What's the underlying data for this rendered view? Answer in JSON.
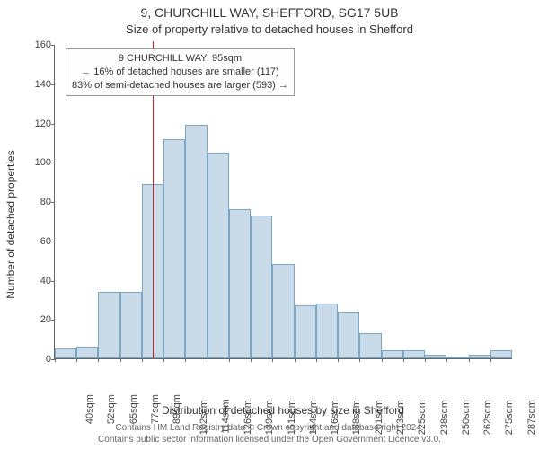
{
  "title_main": "9, CHURCHILL WAY, SHEFFORD, SG17 5UB",
  "title_sub": "Size of property relative to detached houses in Shefford",
  "ylabel": "Number of detached properties",
  "xlabel": "Distribution of detached houses by size in Shefford",
  "caption_line1": "Contains HM Land Registry data © Crown copyright and database right 2024.",
  "caption_line2": "Contains public sector information licensed under the Open Government Licence v3.0.",
  "annotation": {
    "line1": "9 CHURCHILL WAY: 95sqm",
    "line2": "← 16% of detached houses are smaller (117)",
    "line3": "83% of semi-detached houses are larger (593) →"
  },
  "chart": {
    "type": "histogram",
    "bar_color": "#c9dae8",
    "bar_border_color": "#7aa6c2",
    "axis_color": "#666666",
    "background_color": "#ffffff",
    "ref_line_color": "#cc2222",
    "ref_line_at": 4.5,
    "ylim": [
      0,
      160
    ],
    "ytick_step": 20,
    "categories": [
      "40sqm",
      "52sqm",
      "65sqm",
      "77sqm",
      "89sqm",
      "102sqm",
      "114sqm",
      "126sqm",
      "139sqm",
      "151sqm",
      "164sqm",
      "176sqm",
      "188sqm",
      "201sqm",
      "213sqm",
      "225sqm",
      "238sqm",
      "250sqm",
      "262sqm",
      "275sqm",
      "287sqm"
    ],
    "values": [
      5,
      6,
      34,
      34,
      89,
      112,
      119,
      105,
      76,
      73,
      48,
      27,
      28,
      24,
      13,
      4,
      4,
      2,
      0,
      2,
      4
    ],
    "title_fontsize": 14,
    "subtitle_fontsize": 13,
    "label_fontsize": 12,
    "tick_fontsize": 11,
    "annotation_fontsize": 11,
    "caption_fontsize": 10
  }
}
